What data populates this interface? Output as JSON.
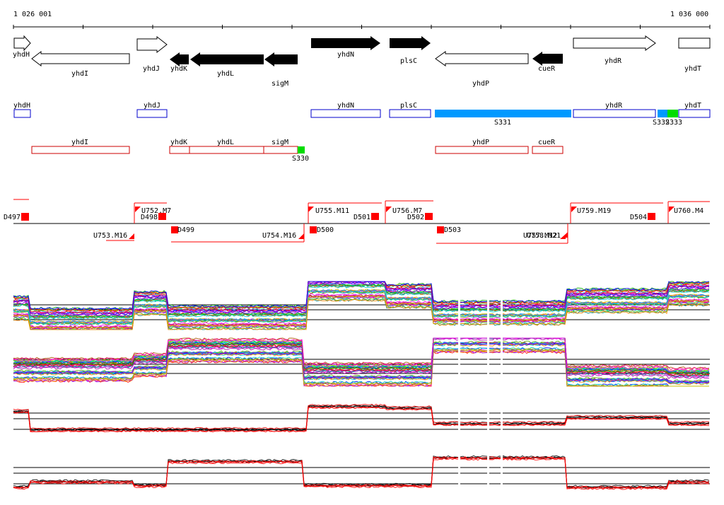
{
  "ruler": {
    "start_label": "1 026 001",
    "end_label": "1 036 000"
  },
  "genes": [
    {
      "name": "yhdH",
      "strand": "+",
      "style": "open"
    },
    {
      "name": "yhdI",
      "strand": "-",
      "style": "open"
    },
    {
      "name": "yhdJ",
      "strand": "+",
      "style": "open"
    },
    {
      "name": "yhdK",
      "strand": "-",
      "style": "filled"
    },
    {
      "name": "yhdL",
      "strand": "-",
      "style": "filled"
    },
    {
      "name": "sigM",
      "strand": "-",
      "style": "filled"
    },
    {
      "name": "yhdN",
      "strand": "+",
      "style": "filled"
    },
    {
      "name": "plsC",
      "strand": "+",
      "style": "filled"
    },
    {
      "name": "yhdP",
      "strand": "-",
      "style": "open"
    },
    {
      "name": "cueR",
      "strand": "-",
      "style": "filled"
    },
    {
      "name": "yhdR",
      "strand": "+",
      "style": "open"
    },
    {
      "name": "yhdT",
      "strand": "+",
      "style": "open"
    }
  ],
  "plus_track": [
    {
      "name": "yhdH",
      "color": "#0000cc"
    },
    {
      "name": "yhdJ",
      "color": "#0000cc"
    },
    {
      "name": "yhdN",
      "color": "#0000cc"
    },
    {
      "name": "plsC",
      "color": "#0000cc"
    },
    {
      "name": "S331",
      "color": "#0099ff"
    },
    {
      "name": "yhdR",
      "color": "#0000cc"
    },
    {
      "name": "S332",
      "color": "#0099ff"
    },
    {
      "name": "S333",
      "color": "#00dd00"
    },
    {
      "name": "yhdT",
      "color": "#0000cc"
    }
  ],
  "minus_track": [
    {
      "name": "yhdI",
      "color": "#cc0000"
    },
    {
      "name": "yhdK",
      "color": "#cc0000"
    },
    {
      "name": "yhdL",
      "color": "#cc0000"
    },
    {
      "name": "sigM",
      "color": "#cc0000"
    },
    {
      "name": "S330",
      "color": "#00dd00"
    },
    {
      "name": "yhdP",
      "color": "#cc0000"
    },
    {
      "name": "cueR",
      "color": "#cc0000"
    }
  ],
  "markers": [
    "D497",
    "U752.M7",
    "D498",
    "U753.M16",
    "D499",
    "U754.M16",
    "U755.M11",
    "D500",
    "D501",
    "U756.M7",
    "D502",
    "D503",
    "U757.M12",
    "U758.M21",
    "U759.M19",
    "D504",
    "U760.M4"
  ],
  "expression_panels": [
    {
      "id": "panel-1",
      "style": "multicolor"
    },
    {
      "id": "panel-2",
      "style": "multicolor"
    },
    {
      "id": "panel-3",
      "style": "black-red"
    },
    {
      "id": "panel-4",
      "style": "black-red"
    }
  ],
  "colors": {
    "marker": "#ff0000",
    "plus_feature": "#0000cc",
    "minus_feature": "#cc0000",
    "utr_blue": "#0099ff",
    "utr_green": "#00dd00"
  }
}
